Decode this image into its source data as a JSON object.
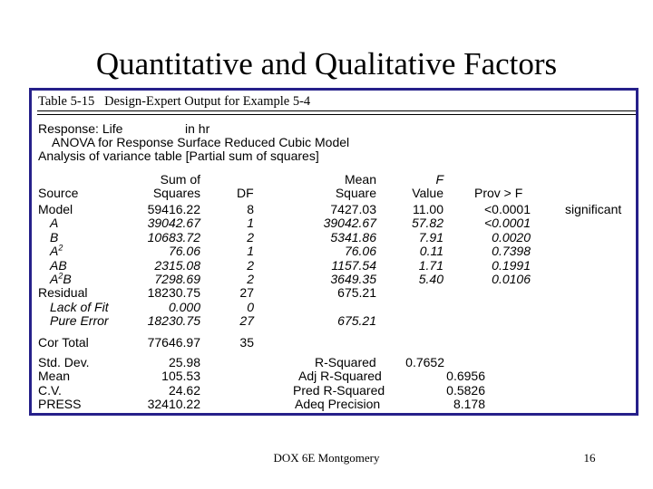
{
  "slide": {
    "title": "Quantitative and Qualitative Factors",
    "footer": "DOX 6E Montgomery",
    "page_number": "16"
  },
  "table": {
    "caption": "Table 5-15   Design-Expert Output for Example 5-4",
    "response_label": "Response: Life",
    "response_unit": "in hr",
    "model_title": "ANOVA for Response Surface Reduced Cubic Model",
    "analysis_title": "Analysis of variance table [Partial sum of squares]",
    "headers": {
      "source": "Source",
      "ss_top": "Sum of",
      "ss_bottom": "Squares",
      "df": "DF",
      "ms_top": "Mean",
      "ms_bottom": "Square",
      "f_top": "F",
      "f_bottom": "Value",
      "prob": "Prov > F"
    },
    "rows": [
      {
        "source": "Model",
        "ss": "59416.22",
        "df": "8",
        "ms": "7427.03",
        "f": "11.00",
        "p": "<0.0001",
        "note": "significant",
        "indent": false
      },
      {
        "source": "A",
        "ss": "39042.67",
        "df": "1",
        "ms": "39042.67",
        "f": "57.82",
        "p": "<0.0001",
        "note": "",
        "indent": true
      },
      {
        "source": "B",
        "ss": "10683.72",
        "df": "2",
        "ms": "5341.86",
        "f": "7.91",
        "p": "0.0020",
        "note": "",
        "indent": true
      },
      {
        "source": "A",
        "sup": "2",
        "suffix": "",
        "ss": "76.06",
        "df": "1",
        "ms": "76.06",
        "f": "0.11",
        "p": "0.7398",
        "note": "",
        "indent": true
      },
      {
        "source": "AB",
        "ss": "2315.08",
        "df": "2",
        "ms": "1157.54",
        "f": "1.71",
        "p": "0.1991",
        "note": "",
        "indent": true
      },
      {
        "source": "A",
        "sup": "2",
        "suffix": "B",
        "ss": "7298.69",
        "df": "2",
        "ms": "3649.35",
        "f": "5.40",
        "p": "0.0106",
        "note": "",
        "indent": true
      },
      {
        "source": "Residual",
        "ss": "18230.75",
        "df": "27",
        "ms": "675.21",
        "f": "",
        "p": "",
        "note": "",
        "indent": false
      },
      {
        "source": "Lack of Fit",
        "ss": "0.000",
        "df": "0",
        "ms": "",
        "f": "",
        "p": "",
        "note": "",
        "indent": true
      },
      {
        "source": "Pure Error",
        "ss": "18230.75",
        "df": "27",
        "ms": "675.21",
        "f": "",
        "p": "",
        "note": "",
        "indent": true
      }
    ],
    "total": {
      "source": "Cor Total",
      "ss": "77646.97",
      "df": "35"
    },
    "stats_left": [
      {
        "label": "Std. Dev.",
        "value": "25.98"
      },
      {
        "label": "Mean",
        "value": "105.53"
      },
      {
        "label": "C.V.",
        "value": "24.62"
      },
      {
        "label": "PRESS",
        "value": "32410.22"
      }
    ],
    "stats_right": [
      {
        "label": "R-Squared",
        "value": "0.7652"
      },
      {
        "label": "Adj R-Squared",
        "value": "0.6956"
      },
      {
        "label": "Pred R-Squared",
        "value": "0.5826"
      },
      {
        "label": "Adeq Precision",
        "value": "8.178"
      }
    ]
  }
}
